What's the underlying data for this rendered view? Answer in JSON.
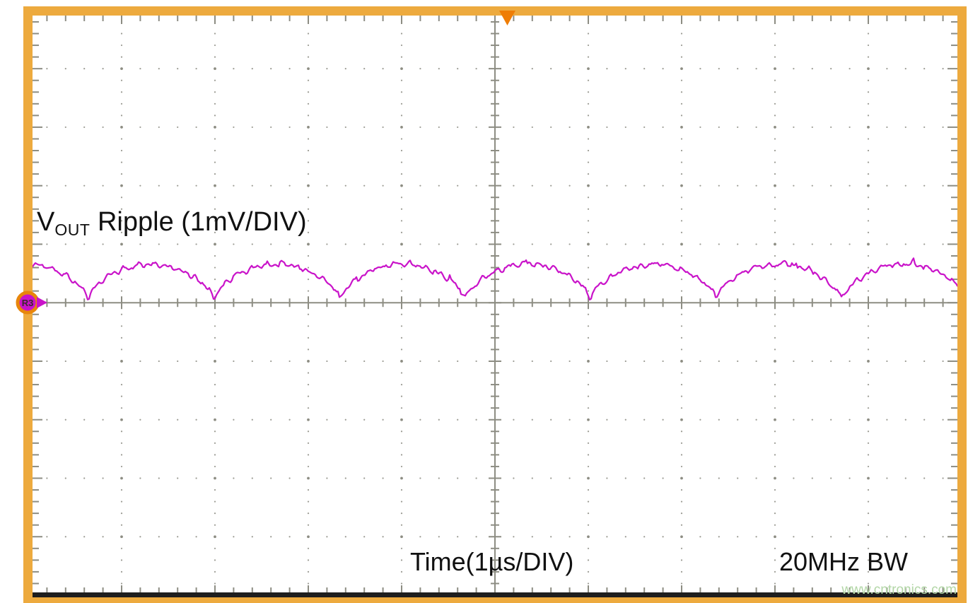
{
  "scope": {
    "channel_label": {
      "base": "V",
      "subscript": "OUT",
      "rest": " Ripple (1mV/DIV)"
    },
    "time_label": "Time(1µs/DIV)",
    "bandwidth_label": "20MHz BW",
    "reference_marker": "R3",
    "watermark": "www.cntronics.com",
    "colors": {
      "border_orange": "#edaa3e",
      "trigger_orange": "#ef7d05",
      "reference_ring_orange": "#e8860b",
      "trace_magenta": "#c913c9",
      "grid_gray": "#9c9c94",
      "tick_gray": "#8d8d83",
      "bottom_bar_black": "#1e1e1e",
      "watermark_green": "#b2d6a6",
      "text_black": "#111111"
    }
  },
  "chart_data": {
    "type": "line",
    "title": "VOUT Ripple (1mV/DIV)",
    "xlabel": "Time(1µs/DIV)",
    "ylabel": "VOUT Ripple (1mV/DIV)",
    "x_axis": {
      "divisions": 10,
      "units_per_div": "1µs",
      "grid": "dotted"
    },
    "y_axis": {
      "divisions": 10,
      "units_per_div": "1mV",
      "grid": "dotted"
    },
    "bandwidth_limit": "20MHz BW",
    "reference": {
      "name": "R3",
      "level_div_from_top": 5
    },
    "trigger_marker_div": 5.13,
    "series": [
      {
        "name": "VOUT ripple",
        "color": "#c913c9",
        "shape": "rectified-hump ripple with sharp troughs and noisy rounded tops",
        "period_divisions": 1.345,
        "first_trough_division": 0.644,
        "trough_level_mv_above_ref": 0.05,
        "peak_level_mv_above_ref": 0.66,
        "noise_mv_pp": 0.14,
        "hump_flatness_exponent": 0.62,
        "noise_seed": 20
      }
    ]
  }
}
